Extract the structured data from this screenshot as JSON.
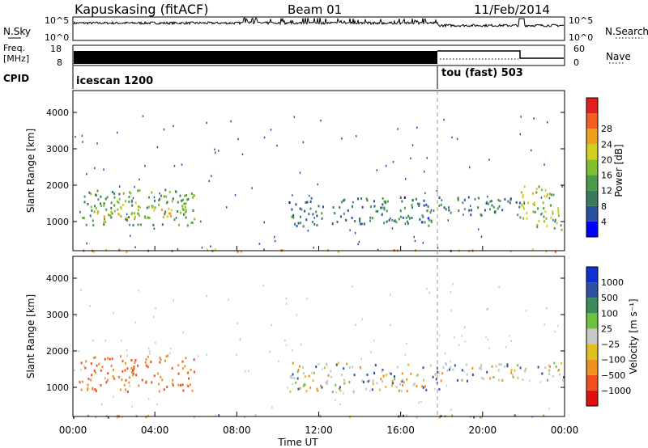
{
  "header": {
    "station": "Kapuskasing (fitACF)",
    "beam": "Beam 01",
    "date": "11/Feb/2014"
  },
  "top_panels": {
    "nsky_label": "N.Sky",
    "nsky_ticks": [
      "10^5",
      "10^0"
    ],
    "nsearch_label": "N.Search",
    "nsearch_ticks": [
      "10^5",
      "10^0"
    ],
    "freq_label_1": "Freq.",
    "freq_label_2": "[MHz]",
    "freq_ticks": [
      "18",
      "8"
    ],
    "nave_label": "Nave",
    "nave_ticks": [
      "60",
      "0"
    ],
    "cpid_label": "CPID",
    "cpid_segments": [
      {
        "label": "icescan 1200",
        "start_hour": 0,
        "end_hour": 18
      },
      {
        "label": "tou (fast) 503",
        "start_hour": 18,
        "end_hour": 24
      }
    ]
  },
  "x_axis": {
    "label": "Time UT",
    "ticks": [
      "00:00",
      "04:00",
      "08:00",
      "12:00",
      "16:00",
      "20:00",
      "00:00"
    ],
    "tick_hours": [
      0,
      4,
      8,
      12,
      16,
      20,
      24
    ]
  },
  "colors": {
    "scatter_blue": "#2a4fa0",
    "scatter_green": "#3f8f3f",
    "scatter_orange": "#f08020",
    "ground_gray": "#c8c8c8"
  },
  "chart_data": [
    {
      "type": "heatmap",
      "title": "",
      "xlabel": "Time UT",
      "ylabel": "Slant Range [km]",
      "xlim": [
        0,
        24
      ],
      "ylim": [
        200,
        4600
      ],
      "yticks": [
        "1000",
        "2000",
        "3000",
        "4000"
      ],
      "ytick_values": [
        1000,
        2000,
        3000,
        4000
      ],
      "colorbar": {
        "label": "Power [dB]",
        "ticks": [
          "4",
          "8",
          "12",
          "16",
          "20",
          "24",
          "28"
        ],
        "tick_values": [
          4,
          8,
          12,
          16,
          20,
          24,
          28
        ],
        "range": [
          0,
          30
        ],
        "colors": [
          "#0000ff",
          "#2a4fa0",
          "#3a7a5a",
          "#4a9a4a",
          "#80c030",
          "#d0d020",
          "#f0a020",
          "#f06020",
          "#e02020"
        ]
      },
      "regions": [
        {
          "t0": 0.3,
          "t1": 6.0,
          "r0": 900,
          "r1": 1900,
          "level": 12
        },
        {
          "t0": 1.0,
          "t1": 5.5,
          "r0": 1100,
          "r1": 1500,
          "level": 18
        },
        {
          "t0": 10.5,
          "t1": 18.0,
          "r0": 900,
          "r1": 1700,
          "level": 8
        },
        {
          "t0": 18.0,
          "t1": 21.8,
          "r0": 1200,
          "r1": 1700,
          "level": 8
        },
        {
          "t0": 21.8,
          "t1": 24.0,
          "r0": 800,
          "r1": 2000,
          "level": 16
        },
        {
          "t0": 0.0,
          "t1": 24.0,
          "r0": 200,
          "r1": 260,
          "level": 22
        }
      ]
    },
    {
      "type": "heatmap",
      "title": "",
      "xlabel": "Time UT",
      "ylabel": "Slant Range [km]",
      "xlim": [
        0,
        24
      ],
      "ylim": [
        200,
        4600
      ],
      "yticks": [
        "1000",
        "2000",
        "3000",
        "4000"
      ],
      "ytick_values": [
        1000,
        2000,
        3000,
        4000
      ],
      "colorbar": {
        "label": "Velocity [m s⁻¹]",
        "ticks": [
          "1000",
          "500",
          "100",
          "25",
          "−25",
          "−100",
          "−500",
          "−1000"
        ],
        "colors": [
          "#1030d0",
          "#3050a0",
          "#3a8a5a",
          "#70c040",
          "#c8c8c8",
          "#e0c020",
          "#f09020",
          "#f05020",
          "#e01010"
        ]
      },
      "regions": [
        {
          "t0": 0.3,
          "t1": 6.0,
          "r0": 900,
          "r1": 1900,
          "velocity": -300
        },
        {
          "t0": 10.5,
          "t1": 18.0,
          "r0": 900,
          "r1": 1700,
          "velocity": 0
        },
        {
          "t0": 18.0,
          "t1": 24.0,
          "r0": 1200,
          "r1": 1700,
          "velocity": 0
        },
        {
          "t0": 0.0,
          "t1": 24.0,
          "r0": 200,
          "r1": 260,
          "velocity": 0
        }
      ]
    }
  ]
}
